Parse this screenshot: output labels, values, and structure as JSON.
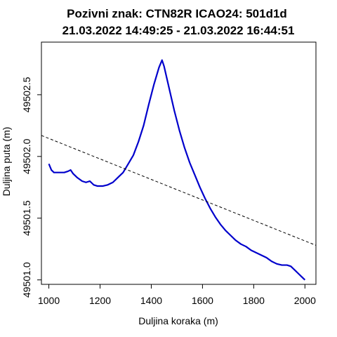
{
  "chart_data": {
    "type": "line",
    "title_line1": "Pozivni znak: CTN82R    ICAO24: 501d1d",
    "title_line2": "21.03.2022 14:49:25 - 21.03.2022 16:44:51",
    "xlabel": "Duljina koraka (m)",
    "ylabel": "Duljina puta (m)",
    "xlim": [
      971,
      2043
    ],
    "ylim": [
      49500.964,
      49502.926
    ],
    "x_ticks": [
      1000,
      1200,
      1400,
      1600,
      1800,
      2000
    ],
    "x_tick_labels": [
      "1000",
      "1200",
      "1400",
      "1600",
      "1800",
      "2000"
    ],
    "y_ticks": [
      49501.0,
      49501.5,
      49502.0,
      49502.5
    ],
    "y_tick_labels": [
      "49501.0",
      "49501.5",
      "49502.0",
      "49502.5"
    ],
    "series": [
      {
        "color": "#0000cc",
        "style": "solid",
        "points": [
          [
            1000,
            49501.94
          ],
          [
            1010,
            49501.89
          ],
          [
            1020,
            49501.87
          ],
          [
            1040,
            49501.87
          ],
          [
            1060,
            49501.87
          ],
          [
            1075,
            49501.88
          ],
          [
            1085,
            49501.89
          ],
          [
            1095,
            49501.86
          ],
          [
            1110,
            49501.83
          ],
          [
            1130,
            49501.8
          ],
          [
            1145,
            49501.79
          ],
          [
            1160,
            49501.8
          ],
          [
            1175,
            49501.77
          ],
          [
            1190,
            49501.76
          ],
          [
            1210,
            49501.76
          ],
          [
            1230,
            49501.77
          ],
          [
            1250,
            49501.79
          ],
          [
            1270,
            49501.83
          ],
          [
            1290,
            49501.87
          ],
          [
            1310,
            49501.94
          ],
          [
            1330,
            49502.01
          ],
          [
            1350,
            49502.12
          ],
          [
            1370,
            49502.25
          ],
          [
            1390,
            49502.42
          ],
          [
            1410,
            49502.58
          ],
          [
            1430,
            49502.72
          ],
          [
            1442,
            49502.78
          ],
          [
            1450,
            49502.73
          ],
          [
            1470,
            49502.55
          ],
          [
            1490,
            49502.37
          ],
          [
            1510,
            49502.21
          ],
          [
            1530,
            49502.07
          ],
          [
            1550,
            49501.95
          ],
          [
            1570,
            49501.85
          ],
          [
            1590,
            49501.75
          ],
          [
            1610,
            49501.66
          ],
          [
            1630,
            49501.58
          ],
          [
            1650,
            49501.51
          ],
          [
            1670,
            49501.45
          ],
          [
            1690,
            49501.4
          ],
          [
            1710,
            49501.36
          ],
          [
            1730,
            49501.32
          ],
          [
            1750,
            49501.29
          ],
          [
            1770,
            49501.27
          ],
          [
            1790,
            49501.24
          ],
          [
            1810,
            49501.22
          ],
          [
            1830,
            49501.2
          ],
          [
            1850,
            49501.18
          ],
          [
            1870,
            49501.15
          ],
          [
            1890,
            49501.13
          ],
          [
            1910,
            49501.12
          ],
          [
            1930,
            49501.12
          ],
          [
            1945,
            49501.11
          ],
          [
            1960,
            49501.08
          ],
          [
            1975,
            49501.05
          ],
          [
            1990,
            49501.02
          ],
          [
            2000,
            49501.0
          ]
        ]
      },
      {
        "color": "#000000",
        "style": "dashed",
        "points": [
          [
            971,
            49502.17
          ],
          [
            2043,
            49501.28
          ]
        ]
      }
    ]
  }
}
